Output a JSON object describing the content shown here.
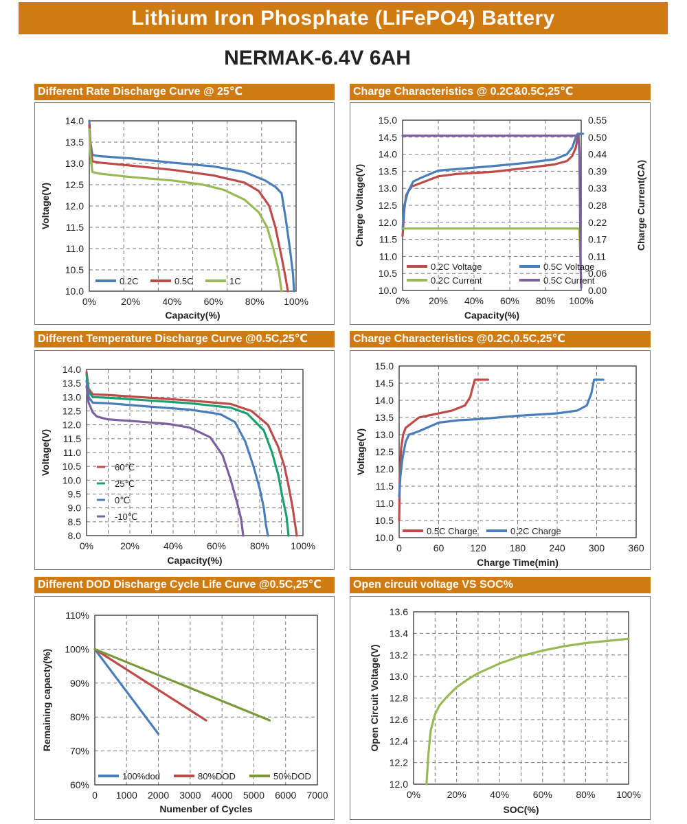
{
  "header": {
    "title": "Lithium Iron Phosphate (LiFePO4) Battery",
    "model": "NERMAK-6.4V 6AH"
  },
  "colors": {
    "accent": "#d07a12",
    "blue": "#4a7ebb",
    "red": "#be4b48",
    "green": "#98b954",
    "purple": "#7d60a0",
    "teal": "#1aa06e",
    "olive": "#7a9a3a",
    "grid": "#7a7a7a"
  },
  "chart_data": [
    {
      "id": "c1",
      "type": "line",
      "title": "Different Rate Discharge Curve @ 25℃",
      "xlabel": "Capacity(%)",
      "ylabel": "Voltage(V)",
      "xlim": [
        0,
        100
      ],
      "ylim": [
        10.0,
        14.0
      ],
      "xticks": [
        "0%",
        "20%",
        "40%",
        "60%",
        "80%",
        "100%"
      ],
      "yticks": [
        "10.0",
        "10.5",
        "11.0",
        "11.5",
        "12.0",
        "12.5",
        "13.0",
        "13.5",
        "14.0"
      ],
      "series": [
        {
          "name": "0.2C",
          "color": "blue",
          "points": [
            [
              0,
              14.0
            ],
            [
              0.5,
              13.5
            ],
            [
              1.5,
              13.2
            ],
            [
              5,
              13.17
            ],
            [
              20,
              13.12
            ],
            [
              40,
              13.02
            ],
            [
              60,
              12.93
            ],
            [
              75,
              12.8
            ],
            [
              85,
              12.6
            ],
            [
              90,
              12.45
            ],
            [
              93,
              12.3
            ],
            [
              95,
              11.7
            ],
            [
              97,
              11.0
            ],
            [
              98.5,
              10.4
            ],
            [
              99,
              10.0
            ]
          ]
        },
        {
          "name": "0.5C",
          "color": "red",
          "points": [
            [
              0,
              13.9
            ],
            [
              0.5,
              13.4
            ],
            [
              1.5,
              13.05
            ],
            [
              5,
              13.02
            ],
            [
              20,
              12.95
            ],
            [
              40,
              12.85
            ],
            [
              60,
              12.72
            ],
            [
              75,
              12.55
            ],
            [
              82,
              12.35
            ],
            [
              87,
              12.0
            ],
            [
              90,
              11.5
            ],
            [
              93,
              10.8
            ],
            [
              95,
              10.3
            ],
            [
              96,
              10.0
            ]
          ]
        },
        {
          "name": "1C",
          "color": "green",
          "points": [
            [
              0,
              13.8
            ],
            [
              0.5,
              13.2
            ],
            [
              1.5,
              12.8
            ],
            [
              5,
              12.76
            ],
            [
              20,
              12.68
            ],
            [
              40,
              12.6
            ],
            [
              55,
              12.5
            ],
            [
              65,
              12.38
            ],
            [
              75,
              12.15
            ],
            [
              82,
              11.85
            ],
            [
              86,
              11.5
            ],
            [
              89,
              11.0
            ],
            [
              91.5,
              10.5
            ],
            [
              93,
              10.0
            ]
          ]
        }
      ]
    },
    {
      "id": "c2",
      "type": "line",
      "title": "Charge Characteristics @ 0.2C&0.5C,25℃",
      "xlabel": "Capacity(%)",
      "ylabel": "Charge Voltage(V)",
      "y2label": "Charge Current(CA)",
      "xlim": [
        0,
        100
      ],
      "ylim": [
        10.0,
        15.0
      ],
      "y2lim": [
        0.0,
        0.55
      ],
      "xticks": [
        "0%",
        "20%",
        "40%",
        "60%",
        "80%",
        "100%"
      ],
      "yticks": [
        "10.0",
        "10.5",
        "11.0",
        "11.5",
        "12.0",
        "12.5",
        "13.0",
        "13.5",
        "14.0",
        "14.5",
        "15.0"
      ],
      "y2ticks": [
        "0.00",
        "0.06",
        "0.11",
        "0.17",
        "0.22",
        "0.28",
        "0.33",
        "0.39",
        "0.44",
        "0.50",
        "0.55"
      ],
      "series": [
        {
          "name": "0.2C Voltage",
          "color": "red",
          "axis": "left",
          "points": [
            [
              0,
              11.6
            ],
            [
              1,
              12.4
            ],
            [
              2,
              12.8
            ],
            [
              5,
              13.05
            ],
            [
              10,
              13.15
            ],
            [
              20,
              13.35
            ],
            [
              30,
              13.42
            ],
            [
              50,
              13.48
            ],
            [
              70,
              13.6
            ],
            [
              85,
              13.7
            ],
            [
              92,
              13.8
            ],
            [
              95,
              13.95
            ],
            [
              97,
              14.2
            ],
            [
              98,
              14.5
            ],
            [
              99,
              14.6
            ]
          ]
        },
        {
          "name": "0.5C Voltage",
          "color": "blue",
          "axis": "left",
          "points": [
            [
              0,
              11.8
            ],
            [
              1,
              12.5
            ],
            [
              3,
              12.9
            ],
            [
              6,
              13.2
            ],
            [
              10,
              13.3
            ],
            [
              20,
              13.52
            ],
            [
              30,
              13.56
            ],
            [
              50,
              13.65
            ],
            [
              70,
              13.75
            ],
            [
              85,
              13.85
            ],
            [
              92,
              14.0
            ],
            [
              95,
              14.2
            ],
            [
              97,
              14.5
            ],
            [
              98,
              14.6
            ],
            [
              101,
              14.6
            ]
          ]
        },
        {
          "name": "0.2C Current",
          "color": "green",
          "axis": "right",
          "points": [
            [
              0,
              0.2
            ],
            [
              99,
              0.2
            ],
            [
              99.5,
              0.11
            ],
            [
              100,
              0.02
            ]
          ]
        },
        {
          "name": "0.5C Current",
          "color": "purple",
          "axis": "right",
          "points": [
            [
              0,
              0.5
            ],
            [
              98.5,
              0.5
            ],
            [
              99,
              0.44
            ],
            [
              99.3,
              0.28
            ],
            [
              99.6,
              0.1
            ],
            [
              100,
              0.01
            ]
          ]
        }
      ]
    },
    {
      "id": "c3",
      "type": "line",
      "title": "Different Temperature Discharge Curve @0.5C,25℃",
      "xlabel": "Capacity(%)",
      "ylabel": "Voltage(V)",
      "xlim": [
        0,
        105
      ],
      "ylim": [
        8.0,
        14.0
      ],
      "xticks": [
        "0%",
        "20%",
        "40%",
        "60%",
        "80%",
        "100%"
      ],
      "yticks": [
        "8.0",
        "8.5",
        "9.0",
        "9.5",
        "10.0",
        "10.5",
        "11.0",
        "11.5",
        "12.0",
        "12.5",
        "13.0",
        "13.5",
        "14.0"
      ],
      "series": [
        {
          "name": "60℃",
          "color": "red",
          "points": [
            [
              0,
              13.9
            ],
            [
              1,
              13.3
            ],
            [
              3,
              13.1
            ],
            [
              10,
              13.08
            ],
            [
              30,
              12.98
            ],
            [
              50,
              12.88
            ],
            [
              70,
              12.75
            ],
            [
              80,
              12.5
            ],
            [
              88,
              12.0
            ],
            [
              93,
              11.2
            ],
            [
              96,
              10.5
            ],
            [
              98,
              9.8
            ],
            [
              100,
              9.0
            ],
            [
              101,
              8.5
            ],
            [
              102,
              8.0
            ]
          ]
        },
        {
          "name": "25℃",
          "color": "teal",
          "points": [
            [
              0,
              13.8
            ],
            [
              1,
              13.2
            ],
            [
              3,
              13.0
            ],
            [
              10,
              12.98
            ],
            [
              30,
              12.88
            ],
            [
              50,
              12.78
            ],
            [
              70,
              12.62
            ],
            [
              78,
              12.4
            ],
            [
              86,
              11.8
            ],
            [
              90,
              11.0
            ],
            [
              93,
              10.2
            ],
            [
              95,
              9.4
            ],
            [
              97,
              8.7
            ],
            [
              98,
              8.0
            ]
          ]
        },
        {
          "name": "0℃",
          "color": "blue",
          "points": [
            [
              0,
              13.6
            ],
            [
              1,
              13.0
            ],
            [
              3,
              12.8
            ],
            [
              10,
              12.78
            ],
            [
              30,
              12.66
            ],
            [
              50,
              12.55
            ],
            [
              65,
              12.38
            ],
            [
              72,
              12.1
            ],
            [
              77,
              11.4
            ],
            [
              81,
              10.5
            ],
            [
              84,
              9.7
            ],
            [
              86,
              9.0
            ],
            [
              87,
              8.4
            ],
            [
              88,
              8.0
            ]
          ]
        },
        {
          "name": "-10℃",
          "color": "purple",
          "points": [
            [
              0,
              13.4
            ],
            [
              1,
              12.8
            ],
            [
              3,
              12.45
            ],
            [
              5,
              12.3
            ],
            [
              10,
              12.2
            ],
            [
              25,
              12.12
            ],
            [
              40,
              12.03
            ],
            [
              50,
              11.9
            ],
            [
              60,
              11.55
            ],
            [
              66,
              10.9
            ],
            [
              70,
              10.0
            ],
            [
              73,
              9.2
            ],
            [
              75,
              8.6
            ],
            [
              76,
              8.0
            ]
          ]
        }
      ]
    },
    {
      "id": "c4",
      "type": "line",
      "title": "Charge Characteristics @0.2C,0.5C,25℃",
      "xlabel": "Charge Time(min)",
      "ylabel": "Voltage(V)",
      "xlim": [
        0,
        360
      ],
      "ylim": [
        10.0,
        15.0
      ],
      "xticks": [
        "0",
        "60",
        "120",
        "180",
        "240",
        "300",
        "360"
      ],
      "yticks": [
        "10.0",
        "10.5",
        "11.0",
        "11.5",
        "12.0",
        "12.5",
        "13.0",
        "13.5",
        "14.0",
        "14.5",
        "15.0"
      ],
      "series": [
        {
          "name": "0.5C Charge",
          "color": "red",
          "points": [
            [
              0,
              10.5
            ],
            [
              1,
              11.8
            ],
            [
              3,
              12.6
            ],
            [
              6,
              13.0
            ],
            [
              10,
              13.2
            ],
            [
              20,
              13.35
            ],
            [
              30,
              13.5
            ],
            [
              50,
              13.58
            ],
            [
              80,
              13.7
            ],
            [
              100,
              13.85
            ],
            [
              108,
              14.1
            ],
            [
              112,
              14.4
            ],
            [
              115,
              14.6
            ],
            [
              135,
              14.6
            ]
          ]
        },
        {
          "name": "0.2C Charge",
          "color": "blue",
          "points": [
            [
              0,
              11.2
            ],
            [
              2,
              11.8
            ],
            [
              5,
              12.3
            ],
            [
              10,
              12.8
            ],
            [
              15,
              13.0
            ],
            [
              30,
              13.1
            ],
            [
              60,
              13.35
            ],
            [
              90,
              13.42
            ],
            [
              120,
              13.45
            ],
            [
              180,
              13.55
            ],
            [
              240,
              13.62
            ],
            [
              270,
              13.7
            ],
            [
              285,
              13.85
            ],
            [
              292,
              14.2
            ],
            [
              296,
              14.6
            ],
            [
              310,
              14.6
            ]
          ]
        }
      ]
    },
    {
      "id": "c5",
      "type": "line",
      "title": "Different DOD Discharge Cycle Life Curve @0.5C,25℃",
      "xlabel": "Numenber of Cycles",
      "ylabel": "Remaining capacty(%)",
      "xlim": [
        0,
        7000
      ],
      "ylim": [
        60,
        110
      ],
      "xticks": [
        "0",
        "1000",
        "2000",
        "3000",
        "4000",
        "5000",
        "6000",
        "7000"
      ],
      "yticks": [
        "60%",
        "70%",
        "80%",
        "90%",
        "100%",
        "110%"
      ],
      "series": [
        {
          "name": "100%dod",
          "color": "blue",
          "points": [
            [
              0,
              100
            ],
            [
              2000,
              75
            ]
          ]
        },
        {
          "name": "80%DOD",
          "color": "red",
          "points": [
            [
              0,
              100
            ],
            [
              3500,
              79
            ]
          ]
        },
        {
          "name": "50%DOD",
          "color": "olive",
          "points": [
            [
              0,
              100
            ],
            [
              5500,
              79
            ]
          ]
        }
      ]
    },
    {
      "id": "c6",
      "type": "line",
      "title": "Open circuit voltage VS SOC%",
      "xlabel": "SOC(%)",
      "ylabel": "Open Circuit Voltage(V)",
      "xlim": [
        0,
        100
      ],
      "ylim": [
        12.0,
        13.6
      ],
      "xticks": [
        "0%",
        "20%",
        "40%",
        "60%",
        "80%",
        "100%"
      ],
      "yticks": [
        "12.0",
        "12.2",
        "12.4",
        "12.6",
        "12.8",
        "13.0",
        "13.2",
        "13.4",
        "13.6"
      ],
      "series": [
        {
          "name": "OCV",
          "color": "green",
          "points": [
            [
              6,
              12.0
            ],
            [
              7,
              12.3
            ],
            [
              8,
              12.5
            ],
            [
              10,
              12.65
            ],
            [
              12,
              12.73
            ],
            [
              15,
              12.8
            ],
            [
              20,
              12.9
            ],
            [
              25,
              12.97
            ],
            [
              30,
              13.03
            ],
            [
              40,
              13.12
            ],
            [
              50,
              13.19
            ],
            [
              60,
              13.24
            ],
            [
              70,
              13.28
            ],
            [
              80,
              13.31
            ],
            [
              90,
              13.33
            ],
            [
              100,
              13.35
            ]
          ]
        }
      ]
    }
  ]
}
